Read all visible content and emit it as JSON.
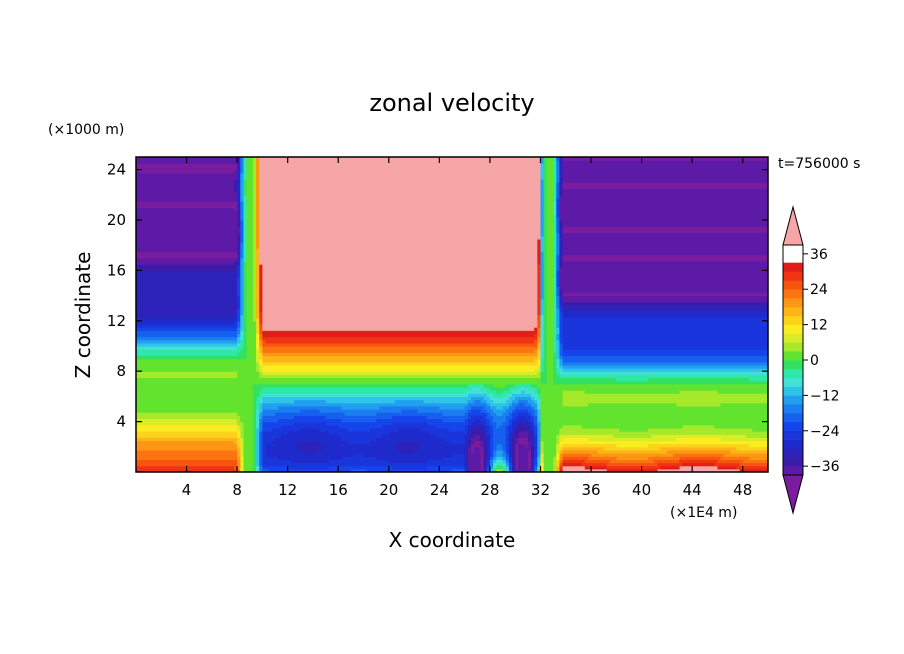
{
  "chart_data": {
    "type": "heatmap",
    "title": "zonal velocity",
    "xlabel": "X coordinate",
    "ylabel": "Z coordinate",
    "x_unit": "(×1E4 m)",
    "y_unit": "(×1000 m)",
    "annotation": "t=756000 s",
    "xlim": [
      0,
      50
    ],
    "ylim": [
      0,
      25
    ],
    "x_ticks": [
      4,
      8,
      12,
      16,
      20,
      24,
      28,
      32,
      36,
      40,
      44,
      48
    ],
    "y_ticks": [
      4,
      8,
      12,
      16,
      20,
      24
    ],
    "colorbar": {
      "levels": [
        -42,
        -39,
        -36,
        -33,
        -30,
        -27,
        -24,
        -21,
        -18,
        -15,
        -12,
        -9,
        -6,
        -3,
        0,
        3,
        6,
        9,
        12,
        15,
        18,
        21,
        24,
        27,
        30,
        33,
        36,
        39,
        42
      ],
      "tick_labels": [
        "36",
        "24",
        "12",
        "0",
        "−12",
        "−24",
        "−36"
      ],
      "tick_values": [
        36,
        24,
        12,
        0,
        -12,
        -24,
        -36
      ],
      "extend": "both",
      "placement": "right"
    },
    "field_description": {
      "x_nodes": [
        0,
        7.5,
        8.7,
        9.3,
        10.0,
        11,
        20,
        26,
        31,
        32.1,
        32.7,
        33.3,
        34,
        40,
        50
      ],
      "z_nodes": [
        0,
        1,
        2,
        3,
        4,
        5,
        6,
        7,
        8,
        10,
        12,
        14,
        16,
        18,
        20,
        22,
        25
      ]
    }
  }
}
